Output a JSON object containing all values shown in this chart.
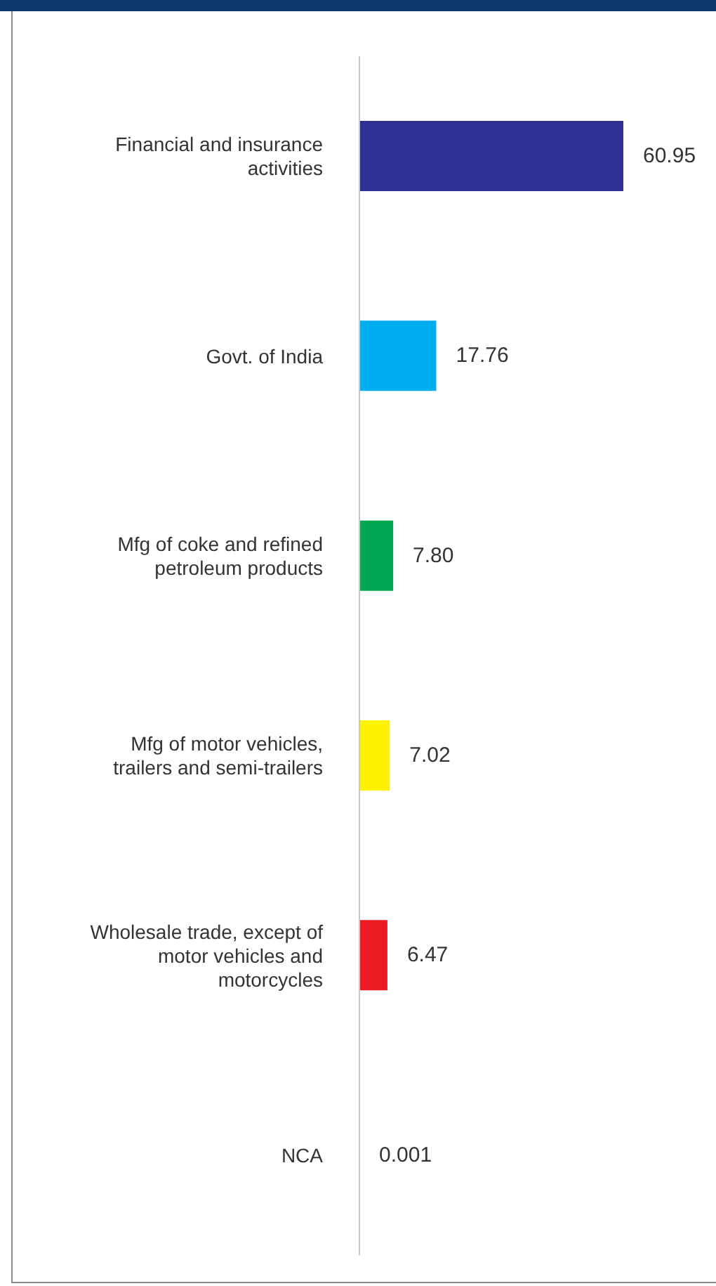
{
  "chart_data": {
    "type": "bar",
    "orientation": "horizontal",
    "categories": [
      "Financial and insurance activities",
      "Govt. of India",
      "Mfg of coke and refined petroleum products",
      "Mfg of motor vehicles, trailers and semi-trailers",
      "Wholesale trade, except of motor vehicles and motorcycles",
      "NCA"
    ],
    "values": [
      60.95,
      17.76,
      7.8,
      7.02,
      6.47,
      0.001
    ],
    "value_labels": [
      "60.95",
      "17.76",
      "7.80",
      "7.02",
      "6.47",
      "0.001"
    ],
    "colors": [
      "#2e3192",
      "#00aeef",
      "#00a651",
      "#fff200",
      "#ed1c24",
      "#7f7f7f"
    ]
  }
}
